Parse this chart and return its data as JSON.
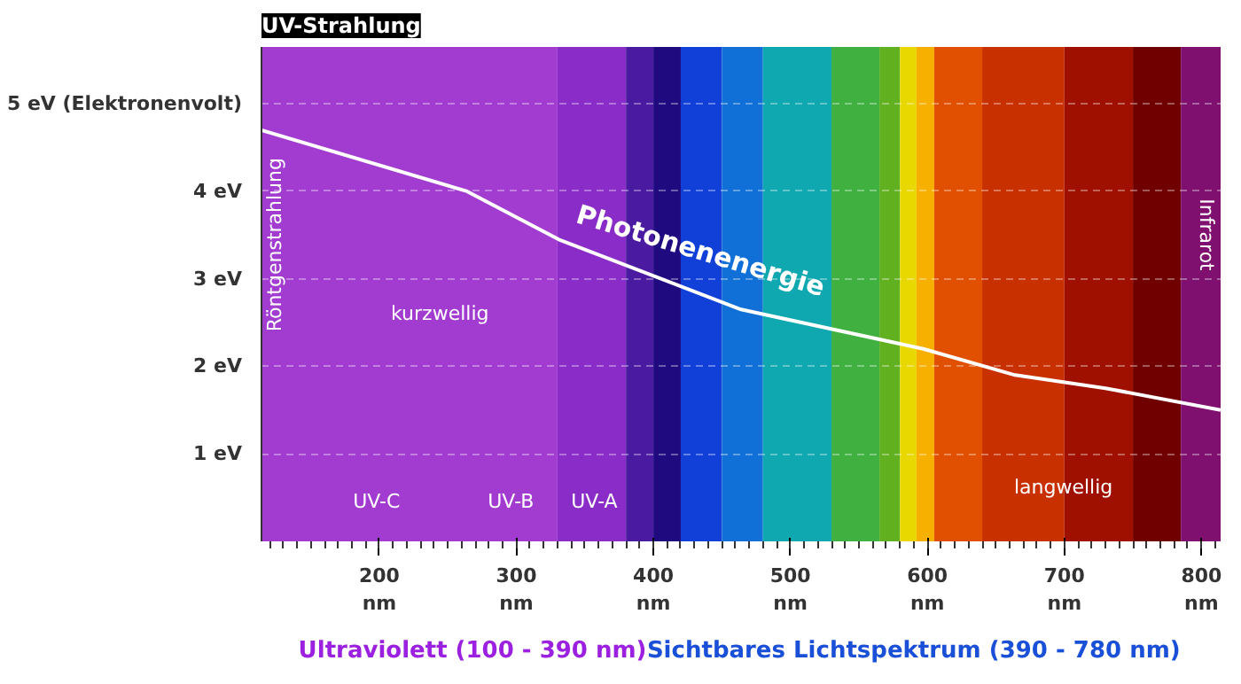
{
  "chart_data": {
    "type": "line",
    "title": "UV-Strahlung",
    "x": [
      114,
      264,
      331,
      464,
      597,
      664,
      730,
      814
    ],
    "series": [
      {
        "name": "Photonenenergie",
        "color": "#ffffff",
        "values": [
          4.7,
          4.0,
          3.45,
          2.65,
          2.2,
          1.9,
          1.75,
          1.5
        ]
      }
    ],
    "xlim": [
      114,
      814
    ],
    "ylim": [
      0,
      5.65
    ],
    "xticks": [
      {
        "value": 200,
        "label": "200 nm"
      },
      {
        "value": 300,
        "label": "300 nm"
      },
      {
        "value": 400,
        "label": "400 nm"
      },
      {
        "value": 500,
        "label": "500 nm"
      },
      {
        "value": 600,
        "label": "600 nm"
      },
      {
        "value": 700,
        "label": "700 nm"
      },
      {
        "value": 800,
        "label": "800 nm"
      }
    ],
    "yticks": [
      {
        "value": 1,
        "label": "1 eV"
      },
      {
        "value": 2,
        "label": "2 eV"
      },
      {
        "value": 3,
        "label": "3 eV"
      },
      {
        "value": 4,
        "label": "4 eV"
      },
      {
        "value": 5,
        "label": "5 eV (Elektronenvolt)"
      }
    ],
    "grid": "y",
    "marker": "none",
    "line_style": "solid",
    "bands": [
      {
        "axis": "x",
        "from": 114,
        "to": 330,
        "color": "#a23cd0"
      },
      {
        "axis": "x",
        "from": 330,
        "to": 380,
        "color": "#8a2cc8"
      },
      {
        "axis": "x",
        "from": 380,
        "to": 400,
        "color": "#4a1aa0"
      },
      {
        "axis": "x",
        "from": 400,
        "to": 420,
        "color": "#200a80"
      },
      {
        "axis": "x",
        "from": 420,
        "to": 450,
        "color": "#1040d8"
      },
      {
        "axis": "x",
        "from": 450,
        "to": 480,
        "color": "#1070d8"
      },
      {
        "axis": "x",
        "from": 480,
        "to": 530,
        "color": "#10a8b0"
      },
      {
        "axis": "x",
        "from": 530,
        "to": 565,
        "color": "#40b040"
      },
      {
        "axis": "x",
        "from": 565,
        "to": 580,
        "color": "#60b020"
      },
      {
        "axis": "x",
        "from": 580,
        "to": 592,
        "color": "#e8d800"
      },
      {
        "axis": "x",
        "from": 592,
        "to": 605,
        "color": "#f8b000"
      },
      {
        "axis": "x",
        "from": 605,
        "to": 640,
        "color": "#e05000"
      },
      {
        "axis": "x",
        "from": 640,
        "to": 700,
        "color": "#c83000"
      },
      {
        "axis": "x",
        "from": 700,
        "to": 750,
        "color": "#a01000"
      },
      {
        "axis": "x",
        "from": 750,
        "to": 785,
        "color": "#700000"
      },
      {
        "axis": "x",
        "from": 785,
        "to": 814,
        "color": "#801070"
      }
    ],
    "annotations": [
      "Röntgenstrahlung",
      "Infrarot",
      "kurzwellig",
      "langwellig",
      "UV-C",
      "UV-B",
      "UV-A",
      "Ultraviolett (100 - 390 nm)",
      "Sichtbares Lichtspektrum (390 - 780 nm)"
    ]
  }
}
